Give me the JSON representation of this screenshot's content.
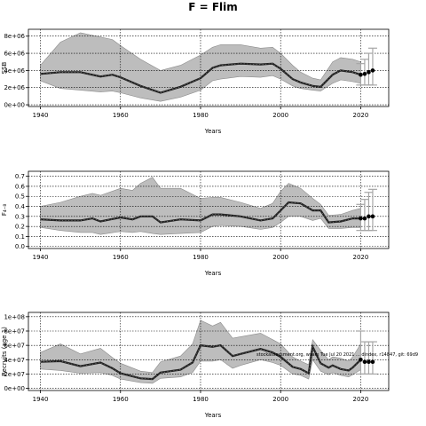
{
  "title": "F = Flim",
  "watermark": "stockassessment.org, wsam Tue Jul 20 2021 ... dindex, r14847, git: 69d9",
  "colors": {
    "band": "#bdbdbd",
    "band_edge": "#8c8c8c",
    "line": "#222222",
    "point": "#000000",
    "error_bar": "#a6a6a6",
    "grid": "#000000"
  },
  "chart_data": [
    {
      "type": "line",
      "panel": "ssb",
      "xlabel": "Years",
      "ylabel": "SSB",
      "xlim": [
        1937,
        2027
      ],
      "ylim": [
        -200000,
        8800000
      ],
      "xticks": [
        1940,
        1960,
        1980,
        2000,
        2020
      ],
      "yticks": [
        0,
        2000000,
        4000000,
        6000000,
        8000000
      ],
      "ytick_labels": [
        "0e+00",
        "2e+06",
        "4e+06",
        "6e+06",
        "8e+06"
      ],
      "grid": true,
      "x": [
        1940,
        1945,
        1950,
        1955,
        1958,
        1960,
        1965,
        1970,
        1975,
        1980,
        1983,
        1985,
        1990,
        1995,
        1998,
        2000,
        2003,
        2005,
        2008,
        2010,
        2013,
        2015,
        2018,
        2020
      ],
      "mean": [
        3600000,
        3800000,
        3800000,
        3300000,
        3500000,
        3200000,
        2200000,
        1400000,
        2100000,
        3100000,
        4300000,
        4600000,
        4800000,
        4700000,
        4800000,
        4200000,
        3000000,
        2600000,
        2200000,
        2100000,
        3500000,
        4000000,
        3800000,
        3500000
      ],
      "upper": [
        4600000,
        7300000,
        8400000,
        7900000,
        7600000,
        6900000,
        5300000,
        4000000,
        4600000,
        5800000,
        6700000,
        7000000,
        7000000,
        6600000,
        6700000,
        6000000,
        4600000,
        3800000,
        3100000,
        2900000,
        5000000,
        5500000,
        5300000,
        5000000
      ],
      "lower": [
        2800000,
        1900000,
        1700000,
        1500000,
        1600000,
        1400000,
        800000,
        400000,
        900000,
        1700000,
        2800000,
        3000000,
        3300000,
        3200000,
        3400000,
        3000000,
        2200000,
        1900000,
        1700000,
        1600000,
        2500000,
        2900000,
        2700000,
        2500000
      ],
      "projection": [
        {
          "x": 2020,
          "y": 3500000,
          "lo": 2300000,
          "hi": 4800000
        },
        {
          "x": 2021,
          "y": 3600000,
          "lo": 2300000,
          "hi": 5300000
        },
        {
          "x": 2022,
          "y": 3800000,
          "lo": 2300000,
          "hi": 6000000
        },
        {
          "x": 2023,
          "y": 4000000,
          "lo": 2300000,
          "hi": 6600000
        }
      ]
    },
    {
      "type": "line",
      "panel": "fbar",
      "xlabel": "Years",
      "ylabel": "F₄₋₈",
      "xlim": [
        1937,
        2027
      ],
      "ylim": [
        -0.02,
        0.75
      ],
      "xticks": [
        1940,
        1960,
        1980,
        2000,
        2020
      ],
      "yticks": [
        0,
        0.1,
        0.2,
        0.3,
        0.4,
        0.5,
        0.6,
        0.7
      ],
      "ytick_labels": [
        "0.0",
        "0.1",
        "0.2",
        "0.3",
        "0.4",
        "0.5",
        "0.6",
        "0.7"
      ],
      "grid": true,
      "x": [
        1940,
        1945,
        1950,
        1953,
        1955,
        1960,
        1963,
        1965,
        1968,
        1970,
        1975,
        1980,
        1983,
        1985,
        1990,
        1995,
        1998,
        2000,
        2002,
        2005,
        2008,
        2010,
        2012,
        2015,
        2018,
        2020
      ],
      "mean": [
        0.27,
        0.26,
        0.26,
        0.28,
        0.25,
        0.29,
        0.27,
        0.3,
        0.3,
        0.24,
        0.27,
        0.26,
        0.32,
        0.32,
        0.3,
        0.26,
        0.28,
        0.36,
        0.44,
        0.43,
        0.36,
        0.36,
        0.24,
        0.25,
        0.28,
        0.28
      ],
      "upper": [
        0.4,
        0.44,
        0.5,
        0.53,
        0.51,
        0.58,
        0.56,
        0.63,
        0.69,
        0.58,
        0.58,
        0.48,
        0.49,
        0.49,
        0.44,
        0.38,
        0.43,
        0.55,
        0.63,
        0.58,
        0.48,
        0.42,
        0.31,
        0.32,
        0.36,
        0.38
      ],
      "lower": [
        0.19,
        0.16,
        0.14,
        0.14,
        0.12,
        0.15,
        0.14,
        0.15,
        0.13,
        0.12,
        0.13,
        0.14,
        0.2,
        0.21,
        0.2,
        0.17,
        0.19,
        0.24,
        0.3,
        0.3,
        0.26,
        0.28,
        0.18,
        0.18,
        0.19,
        0.19
      ],
      "projection": [
        {
          "x": 2020,
          "y": 0.28,
          "lo": 0.16,
          "hi": 0.42
        },
        {
          "x": 2021,
          "y": 0.28,
          "lo": 0.16,
          "hi": 0.47
        },
        {
          "x": 2022,
          "y": 0.3,
          "lo": 0.16,
          "hi": 0.54
        },
        {
          "x": 2023,
          "y": 0.3,
          "lo": 0.16,
          "hi": 0.57
        }
      ]
    },
    {
      "type": "line",
      "panel": "recruits",
      "xlabel": "Years",
      "ylabel": "Recruits (age 1)",
      "xlim": [
        1937,
        2027
      ],
      "ylim": [
        -3000000,
        106000000
      ],
      "xticks": [
        1940,
        1960,
        1980,
        2000,
        2020
      ],
      "yticks": [
        0,
        20000000,
        40000000,
        60000000,
        80000000,
        100000000
      ],
      "ytick_labels": [
        "0e+00",
        "2e+07",
        "4e+07",
        "6e+07",
        "8e+07",
        "1e+08"
      ],
      "grid": true,
      "x": [
        1940,
        1945,
        1950,
        1955,
        1958,
        1960,
        1965,
        1968,
        1970,
        1975,
        1978,
        1980,
        1983,
        1985,
        1988,
        1990,
        1995,
        1998,
        2000,
        2003,
        2005,
        2007,
        2008,
        2010,
        2012,
        2013,
        2015,
        2017,
        2018,
        2020
      ],
      "mean": [
        37000000,
        38000000,
        31000000,
        36000000,
        28000000,
        21000000,
        14000000,
        13000000,
        22000000,
        26000000,
        36000000,
        60000000,
        58000000,
        60000000,
        45000000,
        48000000,
        55000000,
        50000000,
        44000000,
        30000000,
        27000000,
        21000000,
        58000000,
        35000000,
        29000000,
        32000000,
        27000000,
        25000000,
        29000000,
        40000000
      ],
      "upper": [
        50000000,
        62000000,
        48000000,
        56000000,
        43000000,
        35000000,
        24000000,
        22000000,
        37000000,
        45000000,
        62000000,
        95000000,
        87000000,
        92000000,
        70000000,
        72000000,
        77000000,
        68000000,
        62000000,
        44000000,
        38000000,
        33000000,
        68000000,
        53000000,
        40000000,
        44000000,
        42000000,
        38000000,
        44000000,
        62000000
      ],
      "lower": [
        27000000,
        25000000,
        21000000,
        22000000,
        18000000,
        13000000,
        8000000,
        7000000,
        14000000,
        16000000,
        22000000,
        38000000,
        38000000,
        40000000,
        28000000,
        32000000,
        40000000,
        36000000,
        32000000,
        20000000,
        18000000,
        13000000,
        40000000,
        24000000,
        19000000,
        22000000,
        18000000,
        16000000,
        19000000,
        26000000
      ],
      "projection": [
        {
          "x": 2020,
          "y": 40000000,
          "lo": 20000000,
          "hi": 80000000
        },
        {
          "x": 2021,
          "y": 37000000,
          "lo": 20000000,
          "hi": 65000000
        },
        {
          "x": 2022,
          "y": 37000000,
          "lo": 20000000,
          "hi": 65000000
        },
        {
          "x": 2023,
          "y": 37000000,
          "lo": 20000000,
          "hi": 65000000
        }
      ]
    }
  ]
}
